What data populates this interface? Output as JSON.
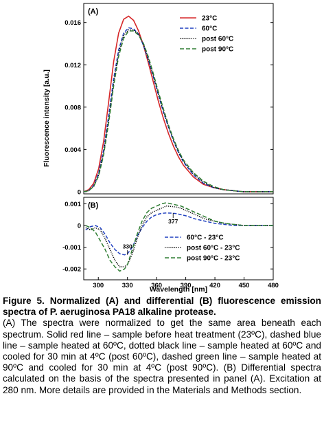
{
  "chart_data": [
    {
      "panel": "A",
      "type": "line",
      "xlabel": "Wavelength [nm]",
      "ylabel": "Fluorescence intensity [a.u.]",
      "xlim": [
        290,
        480
      ],
      "ylim": [
        -0.0002,
        0.0178
      ],
      "yticks": [
        0,
        0.004,
        0.008,
        0.012,
        0.016
      ],
      "ytick_labels": [
        "0",
        "0.004",
        "0.008",
        "0.012",
        "0.016"
      ],
      "legend_position": "top-right",
      "series": [
        {
          "name": "23°C",
          "color": "#d62728",
          "dash": "solid",
          "x": [
            290,
            295,
            300,
            305,
            310,
            315,
            320,
            325,
            330,
            335,
            340,
            345,
            350,
            355,
            360,
            365,
            370,
            375,
            380,
            385,
            390,
            400,
            410,
            420,
            430,
            440,
            450,
            460,
            470,
            480
          ],
          "y": [
            0.0,
            0.0002,
            0.0008,
            0.0022,
            0.0048,
            0.0085,
            0.0123,
            0.015,
            0.0163,
            0.0166,
            0.0162,
            0.0152,
            0.0138,
            0.0121,
            0.0103,
            0.0085,
            0.0069,
            0.0055,
            0.0043,
            0.0033,
            0.0025,
            0.0014,
            0.0007,
            0.0004,
            0.0002,
            0.0001,
            0.0,
            0.0,
            0.0,
            0.0
          ]
        },
        {
          "name": "60°C",
          "color": "#1f3fbf",
          "dash": "dashed",
          "x": [
            290,
            295,
            300,
            305,
            310,
            315,
            320,
            325,
            330,
            335,
            340,
            345,
            350,
            355,
            360,
            365,
            370,
            375,
            380,
            385,
            390,
            400,
            410,
            420,
            430,
            440,
            450,
            460,
            470,
            480
          ],
          "y": [
            0.0,
            0.0001,
            0.0006,
            0.0018,
            0.004,
            0.0072,
            0.0107,
            0.0134,
            0.015,
            0.0155,
            0.0154,
            0.0149,
            0.0138,
            0.0124,
            0.0108,
            0.0091,
            0.0075,
            0.0061,
            0.0048,
            0.0037,
            0.0028,
            0.0016,
            0.0008,
            0.0004,
            0.0002,
            0.0001,
            0.0,
            0.0,
            0.0,
            0.0
          ]
        },
        {
          "name": "post  60°C",
          "color": "#000000",
          "dash": "dotted",
          "x": [
            290,
            295,
            300,
            305,
            310,
            315,
            320,
            325,
            330,
            335,
            340,
            345,
            350,
            355,
            360,
            365,
            370,
            375,
            380,
            385,
            390,
            400,
            410,
            420,
            430,
            440,
            450,
            460,
            470,
            480
          ],
          "y": [
            0.0,
            0.0001,
            0.0005,
            0.0016,
            0.0037,
            0.0068,
            0.0103,
            0.0131,
            0.0148,
            0.0153,
            0.0153,
            0.0149,
            0.0139,
            0.0125,
            0.0109,
            0.0092,
            0.0076,
            0.0062,
            0.0049,
            0.0038,
            0.0029,
            0.0017,
            0.0009,
            0.0004,
            0.0002,
            0.0001,
            0.0,
            0.0,
            0.0,
            0.0
          ]
        },
        {
          "name": "post  90°C",
          "color": "#2e7d32",
          "dash": "longdash",
          "x": [
            290,
            295,
            300,
            305,
            310,
            315,
            320,
            325,
            330,
            335,
            340,
            345,
            350,
            355,
            360,
            365,
            370,
            375,
            380,
            385,
            390,
            400,
            410,
            420,
            430,
            440,
            450,
            460,
            470,
            480
          ],
          "y": [
            0.0,
            0.0001,
            0.0005,
            0.0015,
            0.0035,
            0.0065,
            0.01,
            0.0128,
            0.0145,
            0.0152,
            0.0152,
            0.0148,
            0.014,
            0.0127,
            0.0111,
            0.0094,
            0.0078,
            0.0063,
            0.005,
            0.0039,
            0.003,
            0.0018,
            0.001,
            0.0005,
            0.0002,
            0.0001,
            0.0,
            0.0,
            0.0,
            0.0
          ]
        }
      ]
    },
    {
      "panel": "B",
      "type": "line",
      "xlabel": "Wavelength [nm]",
      "ylabel": "",
      "xlim": [
        285,
        480
      ],
      "ylim": [
        -0.0025,
        0.0013
      ],
      "xticks": [
        300,
        330,
        360,
        390,
        420,
        450,
        480
      ],
      "xtick_labels": [
        "300",
        "330",
        "360",
        "390",
        "420",
        "450",
        "480"
      ],
      "yticks": [
        0.001,
        0,
        -0.001,
        -0.002
      ],
      "ytick_labels": [
        "0.001",
        "0",
        "-0.001",
        "-0.002"
      ],
      "legend_position": "bottom-right",
      "annotations": [
        {
          "text": "330",
          "x": 330,
          "y": -0.00135
        },
        {
          "text": "377",
          "x": 377,
          "y": 0.00057
        }
      ],
      "series": [
        {
          "name": "60°C - 23°C",
          "color": "#1f3fbf",
          "dash": "dashed",
          "x": [
            287,
            292,
            297,
            302,
            307,
            312,
            317,
            322,
            327,
            330,
            335,
            340,
            345,
            350,
            355,
            360,
            365,
            370,
            375,
            380,
            385,
            390,
            400,
            410,
            420,
            430,
            440,
            450,
            460,
            470,
            480
          ],
          "y": [
            -0.0002,
            -5e-05,
            0.0,
            -0.0001,
            -0.0004,
            -0.0008,
            -0.0011,
            -0.0013,
            -0.00135,
            -0.0013,
            -0.001,
            -0.0005,
            -0.0001,
            0.0002,
            0.0004,
            0.0005,
            0.00056,
            0.00058,
            0.00057,
            0.00055,
            0.0005,
            0.00045,
            0.0003,
            0.0002,
            0.0001,
            5e-05,
            0.0,
            0.0,
            0.0,
            0.0,
            0.0
          ]
        },
        {
          "name": "post  60°C - 23°C",
          "color": "#000000",
          "dash": "dotted",
          "x": [
            287,
            292,
            297,
            302,
            307,
            312,
            317,
            322,
            327,
            330,
            335,
            340,
            345,
            350,
            355,
            360,
            365,
            370,
            375,
            380,
            385,
            390,
            400,
            410,
            420,
            430,
            440,
            450,
            460,
            470,
            480
          ],
          "y": [
            -0.0001,
            -0.0002,
            -0.0001,
            -0.0002,
            -0.0006,
            -0.0011,
            -0.0016,
            -0.0019,
            -0.0019,
            -0.0018,
            -0.0013,
            -0.0006,
            0.0,
            0.0004,
            0.0006,
            0.0007,
            0.0008,
            0.0009,
            0.00088,
            0.00085,
            0.0008,
            0.0007,
            0.0005,
            0.0003,
            0.0002,
            0.0001,
            5e-05,
            0.0,
            0.0,
            0.0,
            0.0
          ]
        },
        {
          "name": "post  90°C - 23°C",
          "color": "#2e7d32",
          "dash": "longdash",
          "x": [
            287,
            292,
            297,
            302,
            307,
            312,
            317,
            322,
            327,
            330,
            335,
            340,
            345,
            350,
            355,
            360,
            365,
            370,
            375,
            380,
            385,
            390,
            400,
            410,
            420,
            430,
            440,
            450,
            460,
            470,
            480
          ],
          "y": [
            0.0,
            -0.0001,
            -0.0003,
            -0.0007,
            -0.0011,
            -0.0016,
            -0.0019,
            -0.0021,
            -0.002,
            -0.0018,
            -0.0011,
            -0.0004,
            0.0002,
            0.0006,
            0.0008,
            0.0009,
            0.001,
            0.00105,
            0.001,
            0.00095,
            0.0009,
            0.0008,
            0.0006,
            0.0004,
            0.0002,
            0.0001,
            5e-05,
            0.0,
            0.0,
            0.0,
            0.0
          ]
        }
      ]
    }
  ],
  "panel_tags": {
    "a": "(A)",
    "b": "(B)"
  },
  "caption": {
    "title": "Figure 5. Normalized (A) and differential (B) fluorescence emission spectra of P. aeruginosa PA18 alkaline protease.",
    "body": "(A) The spectra were normalized to get the same area beneath each spectrum. Solid red line – sample before heat treatment (23ºC), dashed blue line – sample heated at 60ºC, dotted black line – sample heated at 60ºC and cooled for 30 min at 4ºC (post 60ºC), dashed green line – sample heated at 90ºC and cooled for 30 min at 4ºC (post 90ºC). (B) Differential spectra calculated on the basis of the spectra presented in panel (A). Excitation at 280 nm. More details are provided in the Materials and Methods section."
  }
}
